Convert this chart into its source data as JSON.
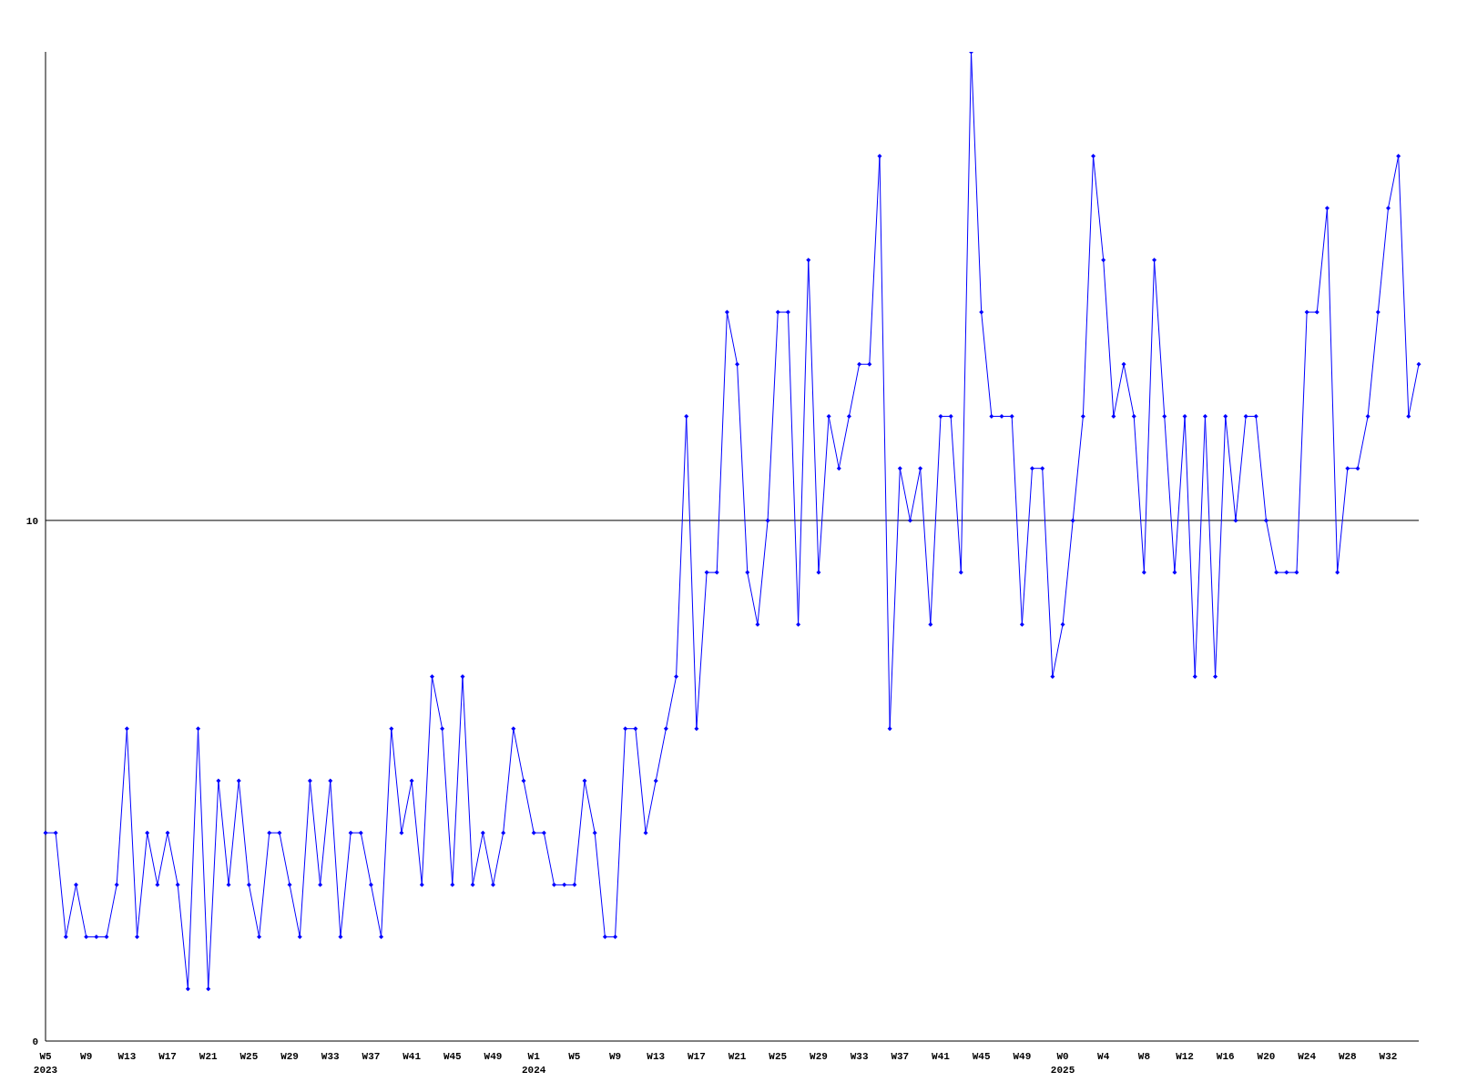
{
  "chart_data": {
    "type": "line",
    "categories": [
      "W5\n2023",
      null,
      null,
      null,
      "W9",
      null,
      null,
      null,
      "W13",
      null,
      null,
      null,
      "W17",
      null,
      null,
      null,
      "W21",
      null,
      null,
      null,
      "W25",
      null,
      null,
      null,
      "W29",
      null,
      null,
      null,
      "W33",
      null,
      null,
      null,
      "W37",
      null,
      null,
      null,
      "W41",
      null,
      null,
      null,
      "W45",
      null,
      null,
      null,
      "W49",
      null,
      null,
      null,
      "W1\n2024",
      null,
      null,
      null,
      "W5",
      null,
      null,
      null,
      "W9",
      null,
      null,
      null,
      "W13",
      null,
      null,
      null,
      "W17",
      null,
      null,
      null,
      "W21",
      null,
      null,
      null,
      "W25",
      null,
      null,
      null,
      "W29",
      null,
      null,
      null,
      "W33",
      null,
      null,
      null,
      "W37",
      null,
      null,
      null,
      "W41",
      null,
      null,
      null,
      "W45",
      null,
      null,
      null,
      "W49",
      null,
      null,
      null,
      "W0\n2025",
      null,
      null,
      null,
      "W4",
      null,
      null,
      null,
      "W8",
      null,
      null,
      null,
      "W12",
      null,
      null,
      null,
      "W16",
      null,
      null,
      null,
      "W20",
      null,
      null,
      null,
      "W24",
      null,
      null,
      null,
      "W28",
      null,
      null,
      null,
      "W32",
      null,
      null,
      null
    ],
    "series": [
      {
        "color": "#0000ff",
        "values": [
          4,
          4,
          2,
          3,
          2,
          2,
          2,
          3,
          6,
          2,
          4,
          3,
          4,
          3,
          1,
          6,
          1,
          5,
          3,
          5,
          3,
          2,
          4,
          4,
          3,
          2,
          5,
          3,
          5,
          2,
          4,
          4,
          3,
          2,
          6,
          4,
          5,
          3,
          7,
          6,
          3,
          7,
          3,
          4,
          3,
          4,
          6,
          5,
          4,
          4,
          3,
          3,
          3,
          5,
          4,
          2,
          2,
          6,
          6,
          4,
          5,
          6,
          7,
          12,
          6,
          9,
          9,
          14,
          13,
          9,
          8,
          10,
          14,
          14,
          8,
          15,
          9,
          12,
          11,
          12,
          13,
          13,
          17,
          6,
          11,
          10,
          11,
          8,
          12,
          12,
          9,
          19,
          14,
          12,
          12,
          12,
          8,
          11,
          11,
          7,
          8,
          10,
          12,
          17,
          15,
          12,
          13,
          12,
          9,
          15,
          12,
          9,
          12,
          7,
          12,
          7,
          12,
          10,
          12,
          12,
          10,
          9,
          9,
          9,
          14,
          14,
          16,
          9,
          11,
          11,
          12,
          14,
          16,
          17,
          12,
          13
        ]
      }
    ],
    "ylim": [
      0,
      19
    ],
    "yticks": [
      0,
      10
    ],
    "grid": "y",
    "marker": "diamond",
    "line_style": "solid"
  }
}
